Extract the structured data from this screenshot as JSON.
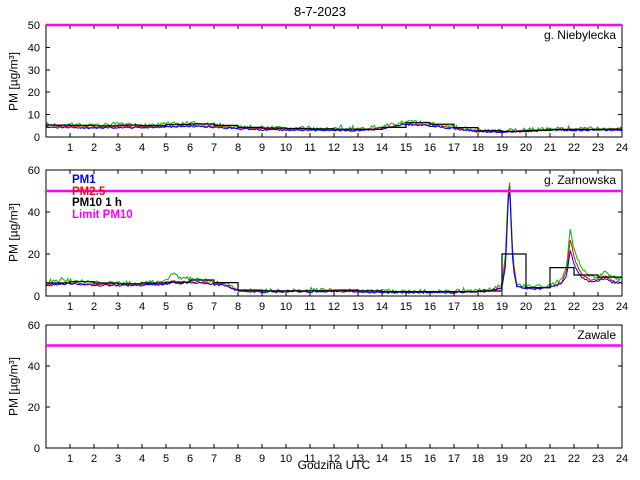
{
  "figure": {
    "title": "8-7-2023",
    "xlabel": "Godzina UTC",
    "ylabel": "PM [µg/m³]"
  },
  "legend": {
    "items": [
      {
        "label": "PM1",
        "color": "#0000ff"
      },
      {
        "label": "PM2.5",
        "color": "#ff0000"
      },
      {
        "label": "PM10 1 h",
        "color": "#000000"
      },
      {
        "label": "Limit PM10",
        "color": "#ff00ff"
      }
    ]
  },
  "colors": {
    "pm1": "#0000ff",
    "pm25": "#ff0000",
    "pm10": "#00bb00",
    "pm10_1h": "#000000",
    "limit_pm10": "#ff00ff"
  },
  "chart_data": [
    {
      "type": "line",
      "title": "g. Niebylecka",
      "xlim": [
        0,
        24
      ],
      "ylim": [
        0,
        50
      ],
      "xticks": [
        1,
        2,
        3,
        4,
        5,
        6,
        7,
        8,
        9,
        10,
        11,
        12,
        13,
        14,
        15,
        16,
        17,
        18,
        19,
        20,
        21,
        22,
        23,
        24
      ],
      "yticks": [
        0,
        10,
        20,
        30,
        40,
        50
      ],
      "limit": 50,
      "series": [
        {
          "name": "PM10",
          "color": "#00bb00",
          "noise": 0.9,
          "x": [
            0,
            1,
            2,
            3,
            4,
            5,
            6,
            7,
            8,
            9,
            10,
            11,
            12,
            13,
            14,
            15,
            16,
            17,
            18,
            19,
            20,
            21,
            22,
            23,
            24
          ],
          "y": [
            5.5,
            5.5,
            5.0,
            5.5,
            5.2,
            5.8,
            6.0,
            5.5,
            4.5,
            4.2,
            4.0,
            3.8,
            3.6,
            3.6,
            4.5,
            6.8,
            6.0,
            4.5,
            3.0,
            2.6,
            3.2,
            3.6,
            3.6,
            3.6,
            4.0
          ]
        },
        {
          "name": "PM2.5",
          "color": "#ff0000",
          "noise": 0.45,
          "x": [
            0,
            1,
            2,
            3,
            4,
            5,
            6,
            7,
            8,
            9,
            10,
            11,
            12,
            13,
            14,
            15,
            16,
            17,
            18,
            19,
            20,
            21,
            22,
            23,
            24
          ],
          "y": [
            4.5,
            4.6,
            4.3,
            4.6,
            4.4,
            4.8,
            5.1,
            4.7,
            3.9,
            3.6,
            3.4,
            3.2,
            3.1,
            3.1,
            3.9,
            6.0,
            5.3,
            4.0,
            2.6,
            2.3,
            2.8,
            3.2,
            3.2,
            3.2,
            3.4
          ]
        },
        {
          "name": "PM1",
          "color": "#0000ff",
          "noise": 0.4,
          "x": [
            0,
            1,
            2,
            3,
            4,
            5,
            6,
            7,
            8,
            9,
            10,
            11,
            12,
            13,
            14,
            15,
            16,
            17,
            18,
            19,
            20,
            21,
            22,
            23,
            24
          ],
          "y": [
            4.2,
            4.3,
            4.0,
            4.3,
            4.1,
            4.5,
            4.8,
            4.4,
            3.6,
            3.3,
            3.2,
            3.0,
            2.9,
            2.9,
            3.6,
            5.6,
            5.0,
            3.8,
            2.4,
            2.1,
            2.6,
            3.0,
            3.0,
            3.0,
            3.2
          ]
        },
        {
          "name": "PM10 1 h",
          "color": "#000000",
          "step": true,
          "x": [
            0,
            1,
            2,
            3,
            4,
            5,
            6,
            7,
            8,
            9,
            10,
            11,
            12,
            13,
            14,
            15,
            16,
            17,
            18,
            19,
            20,
            21,
            22,
            23
          ],
          "y": [
            5.3,
            5.2,
            5.0,
            5.3,
            5.1,
            5.6,
            5.8,
            5.2,
            4.3,
            4.0,
            3.8,
            3.6,
            3.5,
            3.5,
            4.3,
            6.4,
            5.7,
            4.2,
            2.8,
            2.5,
            3.0,
            3.4,
            3.4,
            3.5
          ]
        }
      ]
    },
    {
      "type": "line",
      "title": "g. Zarnowska",
      "xlim": [
        0,
        24
      ],
      "ylim": [
        0,
        60
      ],
      "xticks": [
        1,
        2,
        3,
        4,
        5,
        6,
        7,
        8,
        9,
        10,
        11,
        12,
        13,
        14,
        15,
        16,
        17,
        18,
        19,
        20,
        21,
        22,
        23,
        24
      ],
      "yticks": [
        0,
        20,
        40,
        60
      ],
      "limit": 50,
      "has_legend": true,
      "series": [
        {
          "name": "PM10",
          "color": "#00bb00",
          "noise": 0.9,
          "x": [
            0,
            0.5,
            1,
            2,
            3,
            4,
            5,
            5.3,
            5.6,
            6,
            6.5,
            7,
            7.5,
            8,
            9,
            10,
            11,
            12,
            13,
            14,
            15,
            16,
            17,
            18,
            18.5,
            19,
            19.15,
            19.3,
            19.45,
            19.6,
            20,
            20.5,
            21,
            21.5,
            21.7,
            21.85,
            22,
            22.3,
            22.6,
            23,
            23.3,
            23.6,
            24
          ],
          "y": [
            6.5,
            7,
            7.5,
            6.5,
            6,
            6.5,
            7,
            11,
            8,
            8.5,
            7.5,
            7,
            6.5,
            3,
            2.6,
            2.6,
            2.6,
            3,
            2.6,
            2.2,
            2.2,
            2.2,
            2.2,
            2.6,
            3,
            5,
            20,
            60,
            20,
            6,
            4.5,
            4.5,
            5,
            8,
            15,
            33,
            22,
            13,
            10,
            9,
            12,
            9,
            8
          ]
        },
        {
          "name": "PM2.5",
          "color": "#ff0000",
          "noise": 0.5,
          "x": [
            0,
            0.5,
            1,
            2,
            3,
            4,
            5,
            5.3,
            5.6,
            6,
            6.5,
            7,
            7.5,
            8,
            9,
            10,
            11,
            12,
            13,
            14,
            15,
            16,
            17,
            18,
            18.5,
            19,
            19.15,
            19.3,
            19.45,
            19.6,
            20,
            20.5,
            21,
            21.5,
            21.7,
            21.85,
            22,
            22.3,
            22.6,
            23,
            23.3,
            23.6,
            24
          ],
          "y": [
            5.4,
            5.9,
            6.4,
            5.6,
            5.4,
            5.6,
            6,
            7,
            6.4,
            7,
            6.4,
            5.9,
            5.4,
            2.6,
            2.2,
            2.2,
            2.2,
            2.6,
            2.2,
            1.9,
            1.9,
            1.9,
            1.9,
            2.2,
            2.6,
            4.3,
            17,
            58,
            17,
            5,
            3.8,
            3.8,
            4.3,
            6.6,
            12,
            28,
            18,
            10.5,
            8,
            7.7,
            9.5,
            7.2,
            6.6
          ]
        },
        {
          "name": "PM1",
          "color": "#0000ff",
          "noise": 0.45,
          "x": [
            0,
            0.5,
            1,
            2,
            3,
            4,
            5,
            5.3,
            5.6,
            6,
            6.5,
            7,
            7.5,
            8,
            9,
            10,
            11,
            12,
            13,
            14,
            15,
            16,
            17,
            18,
            18.5,
            19,
            19.15,
            19.3,
            19.45,
            19.6,
            20,
            20.5,
            21,
            21.5,
            21.7,
            21.85,
            22,
            22.3,
            22.6,
            23,
            23.3,
            23.6,
            24
          ],
          "y": [
            5,
            5.5,
            6,
            5.2,
            5,
            5.2,
            5.5,
            6.5,
            6,
            6.5,
            6,
            5.5,
            5,
            2.4,
            2,
            2,
            2,
            2.4,
            2,
            1.7,
            1.7,
            1.7,
            1.7,
            2,
            2.4,
            4,
            15,
            56,
            15,
            4.5,
            3.5,
            3.5,
            4,
            6,
            10,
            22,
            15,
            9,
            7,
            7,
            8.5,
            6.5,
            6
          ]
        },
        {
          "name": "PM10 1 h",
          "color": "#000000",
          "step": true,
          "x": [
            0,
            1,
            2,
            3,
            4,
            5,
            6,
            7,
            8,
            9,
            10,
            11,
            12,
            13,
            14,
            15,
            16,
            17,
            18,
            19,
            20,
            21,
            22,
            23
          ],
          "y": [
            6.2,
            6.8,
            6.2,
            5.8,
            6.2,
            6.6,
            7.6,
            6.4,
            2.8,
            2.5,
            2.5,
            2.5,
            2.8,
            2.5,
            2.1,
            2.1,
            2.1,
            2.1,
            2.4,
            20,
            4,
            13.5,
            10,
            9
          ]
        }
      ]
    },
    {
      "type": "line",
      "title": "Zawale",
      "xlim": [
        0,
        24
      ],
      "ylim": [
        0,
        60
      ],
      "xticks": [
        1,
        2,
        3,
        4,
        5,
        6,
        7,
        8,
        9,
        10,
        11,
        12,
        13,
        14,
        15,
        16,
        17,
        18,
        19,
        20,
        21,
        22,
        23,
        24
      ],
      "yticks": [
        0,
        20,
        40,
        60
      ],
      "limit": 50,
      "series": []
    }
  ]
}
